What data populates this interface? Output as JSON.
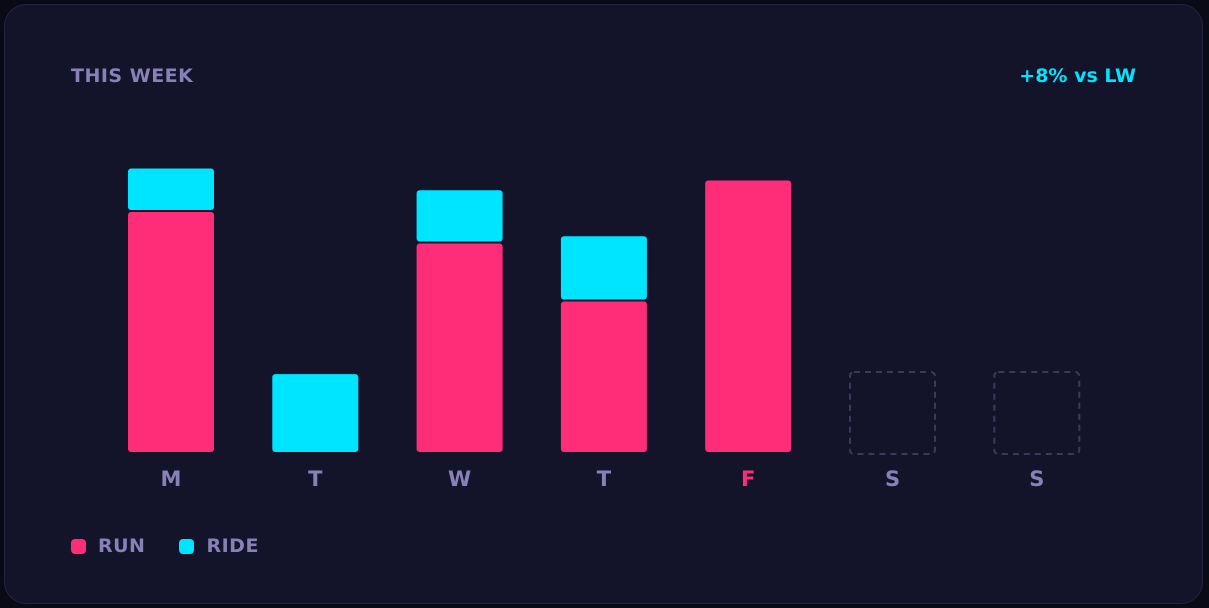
{
  "header": {
    "title": "THIS WEEK",
    "delta": "+8% vs LW"
  },
  "colors": {
    "run": "#ff2d78",
    "ride": "#00e5ff",
    "label": "#8a80b8",
    "today": "#ff2d78",
    "empty_outline": "#3a3b5c",
    "delta": "#00e5ff"
  },
  "chart_data": {
    "type": "bar",
    "stacked": true,
    "categories": [
      "M",
      "T",
      "W",
      "T",
      "F",
      "S",
      "S"
    ],
    "series": [
      {
        "name": "RUN",
        "values": [
          100,
          0,
          87,
          63,
          113,
          0,
          0
        ]
      },
      {
        "name": "RIDE",
        "values": [
          18,
          33,
          22,
          27,
          0,
          0,
          0
        ]
      }
    ],
    "empty_days": [
      5,
      6
    ],
    "highlight_index": 4,
    "ylim": [
      0,
      125
    ],
    "grid": false,
    "legend": "bottom-left"
  }
}
